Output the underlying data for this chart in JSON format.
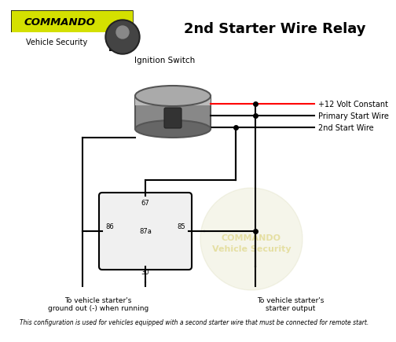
{
  "title": "2nd Starter Wire Relay",
  "title_fontsize": 13,
  "background_color": "#ffffff",
  "footer_text": "This configuration is used for vehicles equipped with a second starter wire that must be connected for remote start.",
  "wire_labels": [
    "+12 Volt Constant",
    "Primary Start Wire",
    "2nd Start Wire"
  ],
  "relay_pins": [
    "67",
    "86",
    "87a",
    "85",
    "30"
  ],
  "bottom_left_label": "To vehicle starter's\nground out (-) when running",
  "bottom_right_label": "To vehicle starter's\nstarter output",
  "ignition_label": "Ignition Switch",
  "logo_text": "COMMANDO",
  "logo_sub": "Vehicle Security",
  "watermark_text": "COMMANDO\nVehicle Security"
}
